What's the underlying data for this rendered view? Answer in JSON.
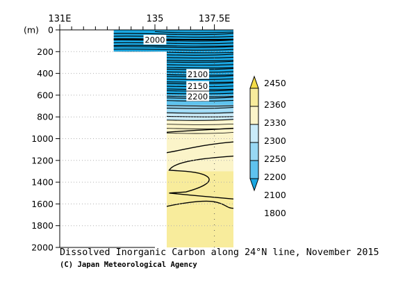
{
  "chart_data": {
    "type": "contour-section",
    "title": "Dissolved Inorganic Carbon along 24°N line, November 2015",
    "credit": "(C) Japan Meteorological Agency",
    "y_unit_label": "(m)",
    "x_tick_labels": [
      {
        "value": 131,
        "label": "131E"
      },
      {
        "value": 135,
        "label": "135"
      },
      {
        "value": 137.5,
        "label": "137.5E"
      }
    ],
    "x_minor_ticks": [
      131,
      131.5,
      132,
      132.5,
      133,
      133.5,
      134,
      134.5,
      135,
      135.5,
      136,
      136.5,
      137,
      137.5
    ],
    "xlim": [
      131,
      138.3
    ],
    "ylim": [
      0,
      2000
    ],
    "y_axis_inverted": true,
    "y_ticks": [
      0,
      200,
      400,
      600,
      800,
      1000,
      1200,
      1400,
      1600,
      1800,
      2000
    ],
    "grid": "dotted horizontal",
    "data_extent": [
      {
        "x_from": 133,
        "x_to": 135,
        "depth_max": 200
      },
      {
        "x_from": 135,
        "x_to": 138.3,
        "depth_max": 2000
      }
    ],
    "colorbar": {
      "levels": [
        1800,
        2100,
        2200,
        2250,
        2300,
        2330,
        2360,
        2450
      ],
      "colors": [
        "#1aa6e0",
        "#5fc3ee",
        "#98d8f4",
        "#c9ebf9",
        "#fbf4c9",
        "#f8ec9c",
        "#f4dc48"
      ],
      "placement": "right"
    },
    "contour_labels": [
      {
        "value": "2000",
        "x": 135,
        "depth": 90
      },
      {
        "value": "2100",
        "x": 136.8,
        "depth": 405
      },
      {
        "value": "2150",
        "x": 136.8,
        "depth": 515
      },
      {
        "value": "2200",
        "x": 136.8,
        "depth": 610
      }
    ],
    "layers": [
      {
        "depth_top": 0,
        "depth_bottom": 600,
        "dic_range": "1800-2100"
      },
      {
        "depth_top": 600,
        "depth_bottom": 690,
        "dic_range": "2100-2200"
      },
      {
        "depth_top": 690,
        "depth_bottom": 760,
        "dic_range": "2200-2250"
      },
      {
        "depth_top": 760,
        "depth_bottom": 830,
        "dic_range": "2250-2300"
      },
      {
        "depth_top": 830,
        "depth_bottom": 1300,
        "dic_range": "2300-2330"
      },
      {
        "depth_top": 1300,
        "depth_bottom": 2000,
        "dic_range": "2330-2360"
      }
    ]
  }
}
